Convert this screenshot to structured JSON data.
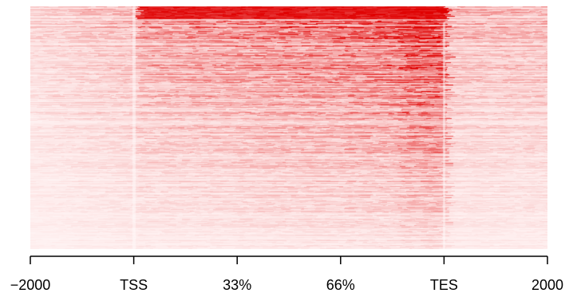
{
  "chart_data": {
    "type": "heatmap",
    "title": "",
    "xlabel": "",
    "ylabel": "",
    "colors": {
      "low": "#fff5f5",
      "high": "#e00000"
    },
    "regions": [
      "upstream",
      "gene body",
      "downstream"
    ],
    "region_bounds": [
      -2000,
      0,
      3,
      5
    ],
    "x_ticks": [
      {
        "value": 0,
        "label": "−2000"
      },
      {
        "value": 1,
        "label": "TSS"
      },
      {
        "value": 2,
        "label": "33%"
      },
      {
        "value": 3,
        "label": "66%"
      },
      {
        "value": 4,
        "label": "TES"
      },
      {
        "value": 5,
        "label": "2000"
      }
    ],
    "xlim": [
      0,
      5
    ],
    "grid": false,
    "legend": "none",
    "description_of_pattern": "",
    "intensity": {
      "upstream_rows_top": 0.35,
      "upstream_rows_bottom": 0.05,
      "genebody_rows_top": 0.9,
      "genebody_rows_bottom": 0.08,
      "downstream_rows_top": 0.35,
      "downstream_rows_bottom": 0.05
    }
  }
}
